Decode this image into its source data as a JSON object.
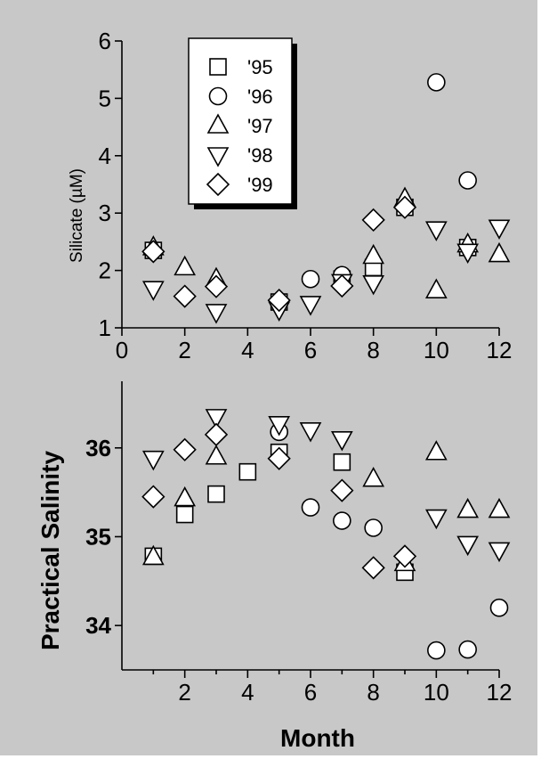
{
  "chart_data": [
    {
      "type": "scatter",
      "ylabel": "Silicate (µM)",
      "xlabel": "",
      "xlim": [
        0,
        12
      ],
      "ylim": [
        1,
        6
      ],
      "xticks": [
        0,
        2,
        4,
        6,
        8,
        10,
        12
      ],
      "yticks": [
        1,
        2,
        3,
        4,
        5,
        6
      ],
      "legend_position": "top-left",
      "grid": false,
      "series": [
        {
          "name": "'95",
          "marker": "square",
          "points": [
            [
              1,
              2.35
            ],
            [
              5,
              1.45
            ],
            [
              7,
              1.85
            ],
            [
              8,
              2.05
            ],
            [
              9,
              3.1
            ],
            [
              11,
              2.4
            ]
          ]
        },
        {
          "name": "'96",
          "marker": "circle",
          "points": [
            [
              6,
              1.85
            ],
            [
              7,
              1.92
            ],
            [
              10,
              5.28
            ],
            [
              11,
              3.57
            ]
          ]
        },
        {
          "name": "'97",
          "marker": "triangle-up",
          "points": [
            [
              1,
              2.4
            ],
            [
              2,
              2.05
            ],
            [
              3,
              1.85
            ],
            [
              8,
              2.25
            ],
            [
              9,
              3.25
            ],
            [
              10,
              1.65
            ],
            [
              11,
              2.45
            ],
            [
              12,
              2.28
            ]
          ]
        },
        {
          "name": "'98",
          "marker": "triangle-down",
          "points": [
            [
              1,
              1.68
            ],
            [
              3,
              1.28
            ],
            [
              5,
              1.32
            ],
            [
              6,
              1.42
            ],
            [
              7,
              1.8
            ],
            [
              8,
              1.78
            ],
            [
              10,
              2.72
            ],
            [
              11,
              2.33
            ],
            [
              12,
              2.75
            ]
          ]
        },
        {
          "name": "'99",
          "marker": "diamond",
          "points": [
            [
              1,
              2.33
            ],
            [
              2,
              1.55
            ],
            [
              3,
              1.72
            ],
            [
              5,
              1.48
            ],
            [
              7,
              1.73
            ],
            [
              8,
              2.88
            ],
            [
              9,
              3.1
            ]
          ]
        }
      ]
    },
    {
      "type": "scatter",
      "ylabel": "Practical Salinity",
      "xlabel": "Month",
      "xlim": [
        0,
        12
      ],
      "ylim": [
        33.5,
        36.75
      ],
      "xticks": [
        2,
        4,
        6,
        8,
        10,
        12
      ],
      "yticks": [
        34,
        35,
        36
      ],
      "grid": false,
      "series": [
        {
          "name": "'95",
          "marker": "square",
          "points": [
            [
              1,
              34.78
            ],
            [
              2,
              35.25
            ],
            [
              3,
              35.48
            ],
            [
              4,
              35.73
            ],
            [
              5,
              35.95
            ],
            [
              7,
              35.84
            ],
            [
              9,
              34.6
            ]
          ]
        },
        {
          "name": "'96",
          "marker": "circle",
          "points": [
            [
              5,
              36.18
            ],
            [
              6,
              35.33
            ],
            [
              7,
              35.18
            ],
            [
              8,
              35.1
            ],
            [
              10,
              33.72
            ],
            [
              11,
              33.73
            ],
            [
              12,
              34.2
            ]
          ]
        },
        {
          "name": "'97",
          "marker": "triangle-up",
          "points": [
            [
              1,
              34.77
            ],
            [
              2,
              35.43
            ],
            [
              3,
              35.9
            ],
            [
              8,
              35.65
            ],
            [
              9,
              34.7
            ],
            [
              10,
              35.95
            ],
            [
              11,
              35.3
            ],
            [
              12,
              35.3
            ]
          ]
        },
        {
          "name": "'98",
          "marker": "triangle-down",
          "points": [
            [
              1,
              35.88
            ],
            [
              3,
              36.35
            ],
            [
              5,
              36.27
            ],
            [
              6,
              36.2
            ],
            [
              7,
              36.1
            ],
            [
              10,
              35.22
            ],
            [
              11,
              34.92
            ],
            [
              12,
              34.85
            ]
          ]
        },
        {
          "name": "'99",
          "marker": "diamond",
          "points": [
            [
              1,
              35.45
            ],
            [
              2,
              35.98
            ],
            [
              3,
              36.15
            ],
            [
              5,
              35.88
            ],
            [
              7,
              35.52
            ],
            [
              8,
              34.65
            ],
            [
              9,
              34.78
            ]
          ]
        }
      ]
    }
  ]
}
